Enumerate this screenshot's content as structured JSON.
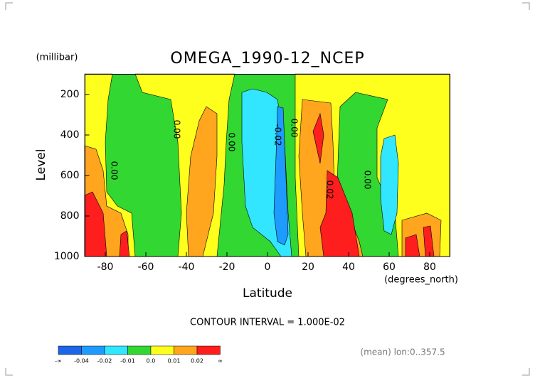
{
  "chart_data": {
    "type": "contour",
    "title": "OMEGA_1990-12_NCEP",
    "y_unit": "(millibar)",
    "ylabel": "Level",
    "xlabel": "Latitude",
    "x_unit": "(degrees_north)",
    "contour_interval": "CONTOUR INTERVAL = 1.000E-02",
    "footnote": "(mean) lon:0..357.5",
    "xlim": [
      -90,
      90
    ],
    "xticks": [
      -80,
      -60,
      -40,
      -20,
      0,
      20,
      40,
      60,
      80
    ],
    "ylim": [
      1000,
      100
    ],
    "yticks": [
      200,
      400,
      600,
      800,
      1000
    ],
    "levels": [
      "-∞",
      -0.04,
      -0.02,
      -0.01,
      {
        "value": 0,
        "label": "0.0"
      },
      0.01,
      0.02,
      "∞"
    ],
    "colors": [
      "#1e64e6",
      "#1e9bff",
      "#32e6ff",
      "#32d732",
      "#ffff1e",
      "#ffa51e",
      "#ff1e1e"
    ],
    "contour_labels": [
      "0.00",
      "0.00",
      "0.00",
      "-0.02",
      "0.00",
      "0.02",
      "0.00"
    ]
  }
}
